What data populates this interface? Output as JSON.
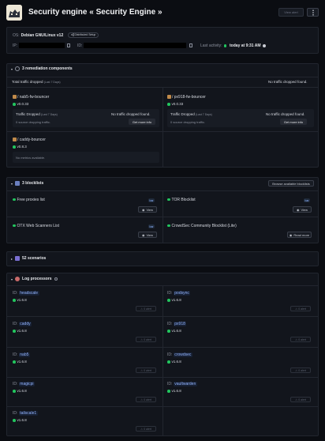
{
  "header": {
    "title": "Security engine « Security Engine »",
    "view_alert": "View alert",
    "menu_icon": "more-vertical-icon",
    "avatar_icon": "engine-avatar-icon"
  },
  "info": {
    "os_label": "OS:",
    "os_value": "Debian GNU/Linux v12",
    "distributed_badge": "Distributed Setup",
    "ip_label": "IP:",
    "id_label": "ID:",
    "last_activity_label": "Last activity:",
    "last_activity_value": "today at 9:31 AM"
  },
  "remediation": {
    "title": "3 remediation components",
    "total_label": "Total traffic dropped",
    "total_period": "(Last 7 Days)",
    "total_value": "No traffic dropped found.",
    "components": [
      {
        "name": "/ nab5-fw-bouncer",
        "version": "v0.0.33",
        "traffic_label": "Traffic Dropped",
        "period": "(Last 7 Days)",
        "no_traffic": "No traffic dropped found.",
        "sources": "0 source dropping traffic.",
        "more": "Get more info"
      },
      {
        "name": "/ px918-fw-bouncer",
        "version": "v0.0.33",
        "traffic_label": "Traffic Dropped",
        "period": "(Last 7 Days)",
        "no_traffic": "No traffic dropped found.",
        "sources": "0 source dropping traffic.",
        "more": "Get more info"
      },
      {
        "name": "/ caddy-bouncer",
        "version": "v0.8.3",
        "no_metrics": "No metrics available."
      }
    ]
  },
  "blocklists": {
    "title": "3 blocklists",
    "browse": "Browse available blocklists",
    "items": [
      {
        "name": "Free proxies list",
        "badge": "bar",
        "action": "View"
      },
      {
        "name": "TOR Blocklist",
        "badge": "bar",
        "action": "View"
      },
      {
        "name": "OTX Web Scanners List",
        "badge": "bar",
        "action": "View"
      },
      {
        "name": "CrowdSec Community Blocklist (Lite)",
        "action": "Read more"
      }
    ]
  },
  "scenarios": {
    "title": "52 scenarios"
  },
  "log_processors": {
    "title": "Log processors",
    "id_label": "ID:",
    "items": [
      {
        "name": "headscale",
        "version": "v1.6.8",
        "alerts": "0 alert"
      },
      {
        "name": "podsync",
        "version": "v1.6.8",
        "alerts": "0 alert"
      },
      {
        "name": "caddy",
        "version": "v1.6.8",
        "alerts": "0 alert"
      },
      {
        "name": "px918",
        "version": "v1.6.8",
        "alerts": "0 alert"
      },
      {
        "name": "nab5",
        "version": "v1.6.8",
        "alerts": "0 alert"
      },
      {
        "name": "crowdsec",
        "version": "v1.6.8",
        "alerts": "0 alert"
      },
      {
        "name": "magicpi",
        "version": "v1.6.8",
        "alerts": "0 alert"
      },
      {
        "name": "vaultwarden",
        "version": "v1.6.8",
        "alerts": "0 alert"
      },
      {
        "name": "tailscale1",
        "version": "v1.6.8",
        "alerts": "0 alert"
      }
    ]
  }
}
